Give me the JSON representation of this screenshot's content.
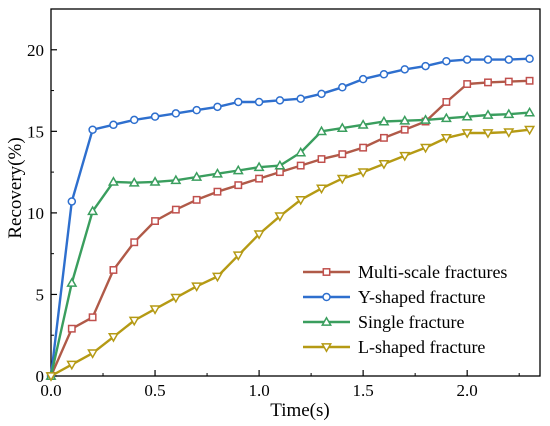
{
  "chart_data": {
    "type": "line",
    "title": "",
    "xlabel": "Time(s)",
    "ylabel": "Recovery(%)",
    "xlim": [
      0,
      2.35
    ],
    "ylim": [
      0,
      22.5
    ],
    "xticks": [
      0.0,
      0.5,
      1.0,
      1.5,
      2.0
    ],
    "xtick_labels": [
      "0.0",
      "0.5",
      "1.0",
      "1.5",
      "2.0"
    ],
    "yticks": [
      0,
      5,
      10,
      15,
      20
    ],
    "ytick_labels": [
      "0",
      "5",
      "10",
      "15",
      "20"
    ],
    "grid": false,
    "legend_position": "bottom-right",
    "series": [
      {
        "name": "Multi-scale fractures",
        "color": "#c0504d",
        "line_color": "#b05a48",
        "marker": "square",
        "x": [
          0,
          0.1,
          0.2,
          0.3,
          0.4,
          0.5,
          0.6,
          0.7,
          0.8,
          0.9,
          1.0,
          1.1,
          1.2,
          1.3,
          1.4,
          1.5,
          1.6,
          1.7,
          1.8,
          1.9,
          2.0,
          2.1,
          2.2,
          2.3
        ],
        "values": [
          0,
          2.9,
          3.6,
          6.5,
          8.2,
          9.5,
          10.2,
          10.8,
          11.3,
          11.7,
          12.1,
          12.5,
          12.9,
          13.3,
          13.6,
          14.0,
          14.6,
          15.1,
          15.6,
          16.8,
          17.9,
          18.0,
          18.05,
          18.1
        ]
      },
      {
        "name": "Y-shaped fracture",
        "color": "#2e6fce",
        "line_color": "#2e6fce",
        "marker": "circle",
        "x": [
          0,
          0.1,
          0.2,
          0.3,
          0.4,
          0.5,
          0.6,
          0.7,
          0.8,
          0.9,
          1.0,
          1.1,
          1.2,
          1.3,
          1.4,
          1.5,
          1.6,
          1.7,
          1.8,
          1.9,
          2.0,
          2.1,
          2.2,
          2.3
        ],
        "values": [
          0,
          10.7,
          15.1,
          15.4,
          15.7,
          15.9,
          16.1,
          16.3,
          16.5,
          16.8,
          16.8,
          16.9,
          17.0,
          17.3,
          17.7,
          18.2,
          18.5,
          18.8,
          19.0,
          19.3,
          19.4,
          19.4,
          19.4,
          19.45
        ]
      },
      {
        "name": "Single fracture",
        "color": "#3a9e5e",
        "line_color": "#3a9e5e",
        "marker": "triangle-up",
        "x": [
          0,
          0.1,
          0.2,
          0.3,
          0.4,
          0.5,
          0.6,
          0.7,
          0.8,
          0.9,
          1.0,
          1.1,
          1.2,
          1.3,
          1.4,
          1.5,
          1.6,
          1.7,
          1.8,
          1.9,
          2.0,
          2.1,
          2.2,
          2.3
        ],
        "values": [
          0,
          5.7,
          10.1,
          11.9,
          11.85,
          11.9,
          12.0,
          12.2,
          12.4,
          12.6,
          12.8,
          12.9,
          13.7,
          15.0,
          15.2,
          15.4,
          15.6,
          15.65,
          15.7,
          15.8,
          15.9,
          16.0,
          16.05,
          16.15
        ]
      },
      {
        "name": "L-shaped fracture",
        "color": "#b59a14",
        "line_color": "#b59a14",
        "marker": "triangle-down",
        "x": [
          0,
          0.1,
          0.2,
          0.3,
          0.4,
          0.5,
          0.6,
          0.7,
          0.8,
          0.9,
          1.0,
          1.1,
          1.2,
          1.3,
          1.4,
          1.5,
          1.6,
          1.7,
          1.8,
          1.9,
          2.0,
          2.1,
          2.2,
          2.3
        ],
        "values": [
          0,
          0.7,
          1.4,
          2.4,
          3.4,
          4.1,
          4.8,
          5.5,
          6.1,
          7.4,
          8.7,
          9.8,
          10.8,
          11.5,
          12.1,
          12.5,
          13.0,
          13.5,
          14.0,
          14.6,
          14.9,
          14.9,
          14.95,
          15.1
        ]
      }
    ]
  }
}
